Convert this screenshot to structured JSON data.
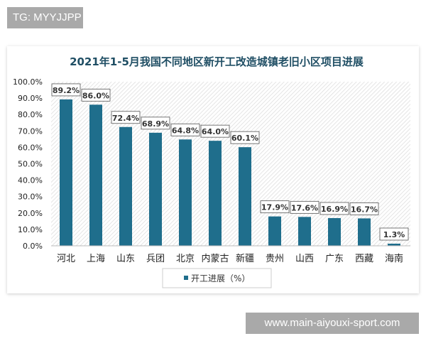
{
  "watermarks": {
    "top_left": "TG: MYYJJPP",
    "bottom_right": "www.main-aiyouxi-sport.com"
  },
  "chart_data": {
    "type": "bar",
    "title": "2021年1-5月我国不同地区新开工改造城镇老旧小区项目进展",
    "categories": [
      "河北",
      "上海",
      "山东",
      "兵团",
      "北京",
      "内蒙古",
      "新疆",
      "贵州",
      "山西",
      "广东",
      "西藏",
      "海南"
    ],
    "series": [
      {
        "name": "开工进展（%）",
        "values": [
          89.2,
          86.0,
          72.4,
          68.9,
          64.8,
          64.0,
          60.1,
          17.9,
          17.6,
          16.9,
          16.7,
          1.3
        ]
      }
    ],
    "data_labels": [
      "89.2%",
      "86.0%",
      "72.4%",
      "68.9%",
      "64.8%",
      "64.0%",
      "60.1%",
      "17.9%",
      "17.6%",
      "16.9%",
      "16.7%",
      "1.3%"
    ],
    "ylim": [
      0,
      100
    ],
    "yticks": [
      "0.0%",
      "10.0%",
      "20.0%",
      "30.0%",
      "40.0%",
      "50.0%",
      "60.0%",
      "70.0%",
      "80.0%",
      "90.0%",
      "100.0%"
    ],
    "legend_position": "bottom",
    "grid": false,
    "colors": {
      "bar": "#1f6e8c",
      "title": "#1f4e64",
      "plot_bg_hatch": "#e4e4e4"
    }
  }
}
